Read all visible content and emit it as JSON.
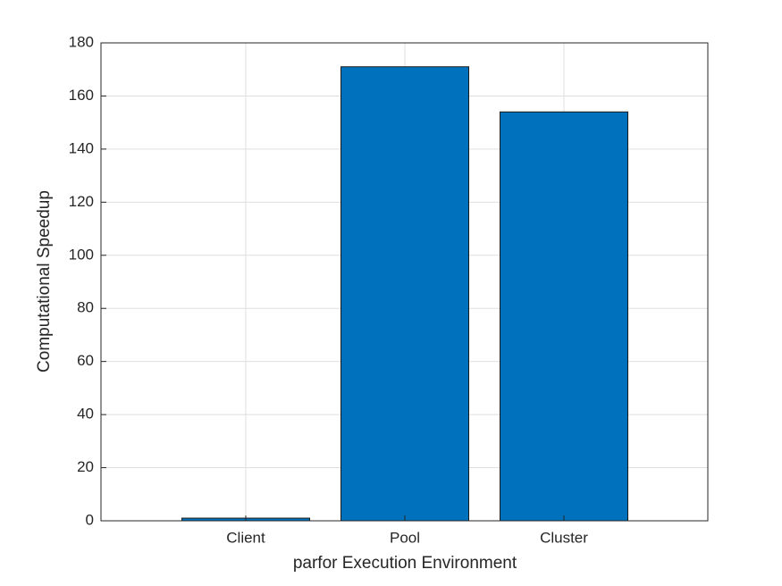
{
  "chart_data": {
    "type": "bar",
    "categories": [
      "Client",
      "Pool",
      "Cluster"
    ],
    "values": [
      1,
      171,
      154
    ],
    "color": "#0072bd",
    "x_label": "parfor Execution Environment",
    "y_label": "Computational Speedup",
    "ylim": [
      0,
      180
    ],
    "yticks": [
      0,
      20,
      40,
      60,
      80,
      100,
      120,
      140,
      160,
      180
    ],
    "grid": true
  }
}
